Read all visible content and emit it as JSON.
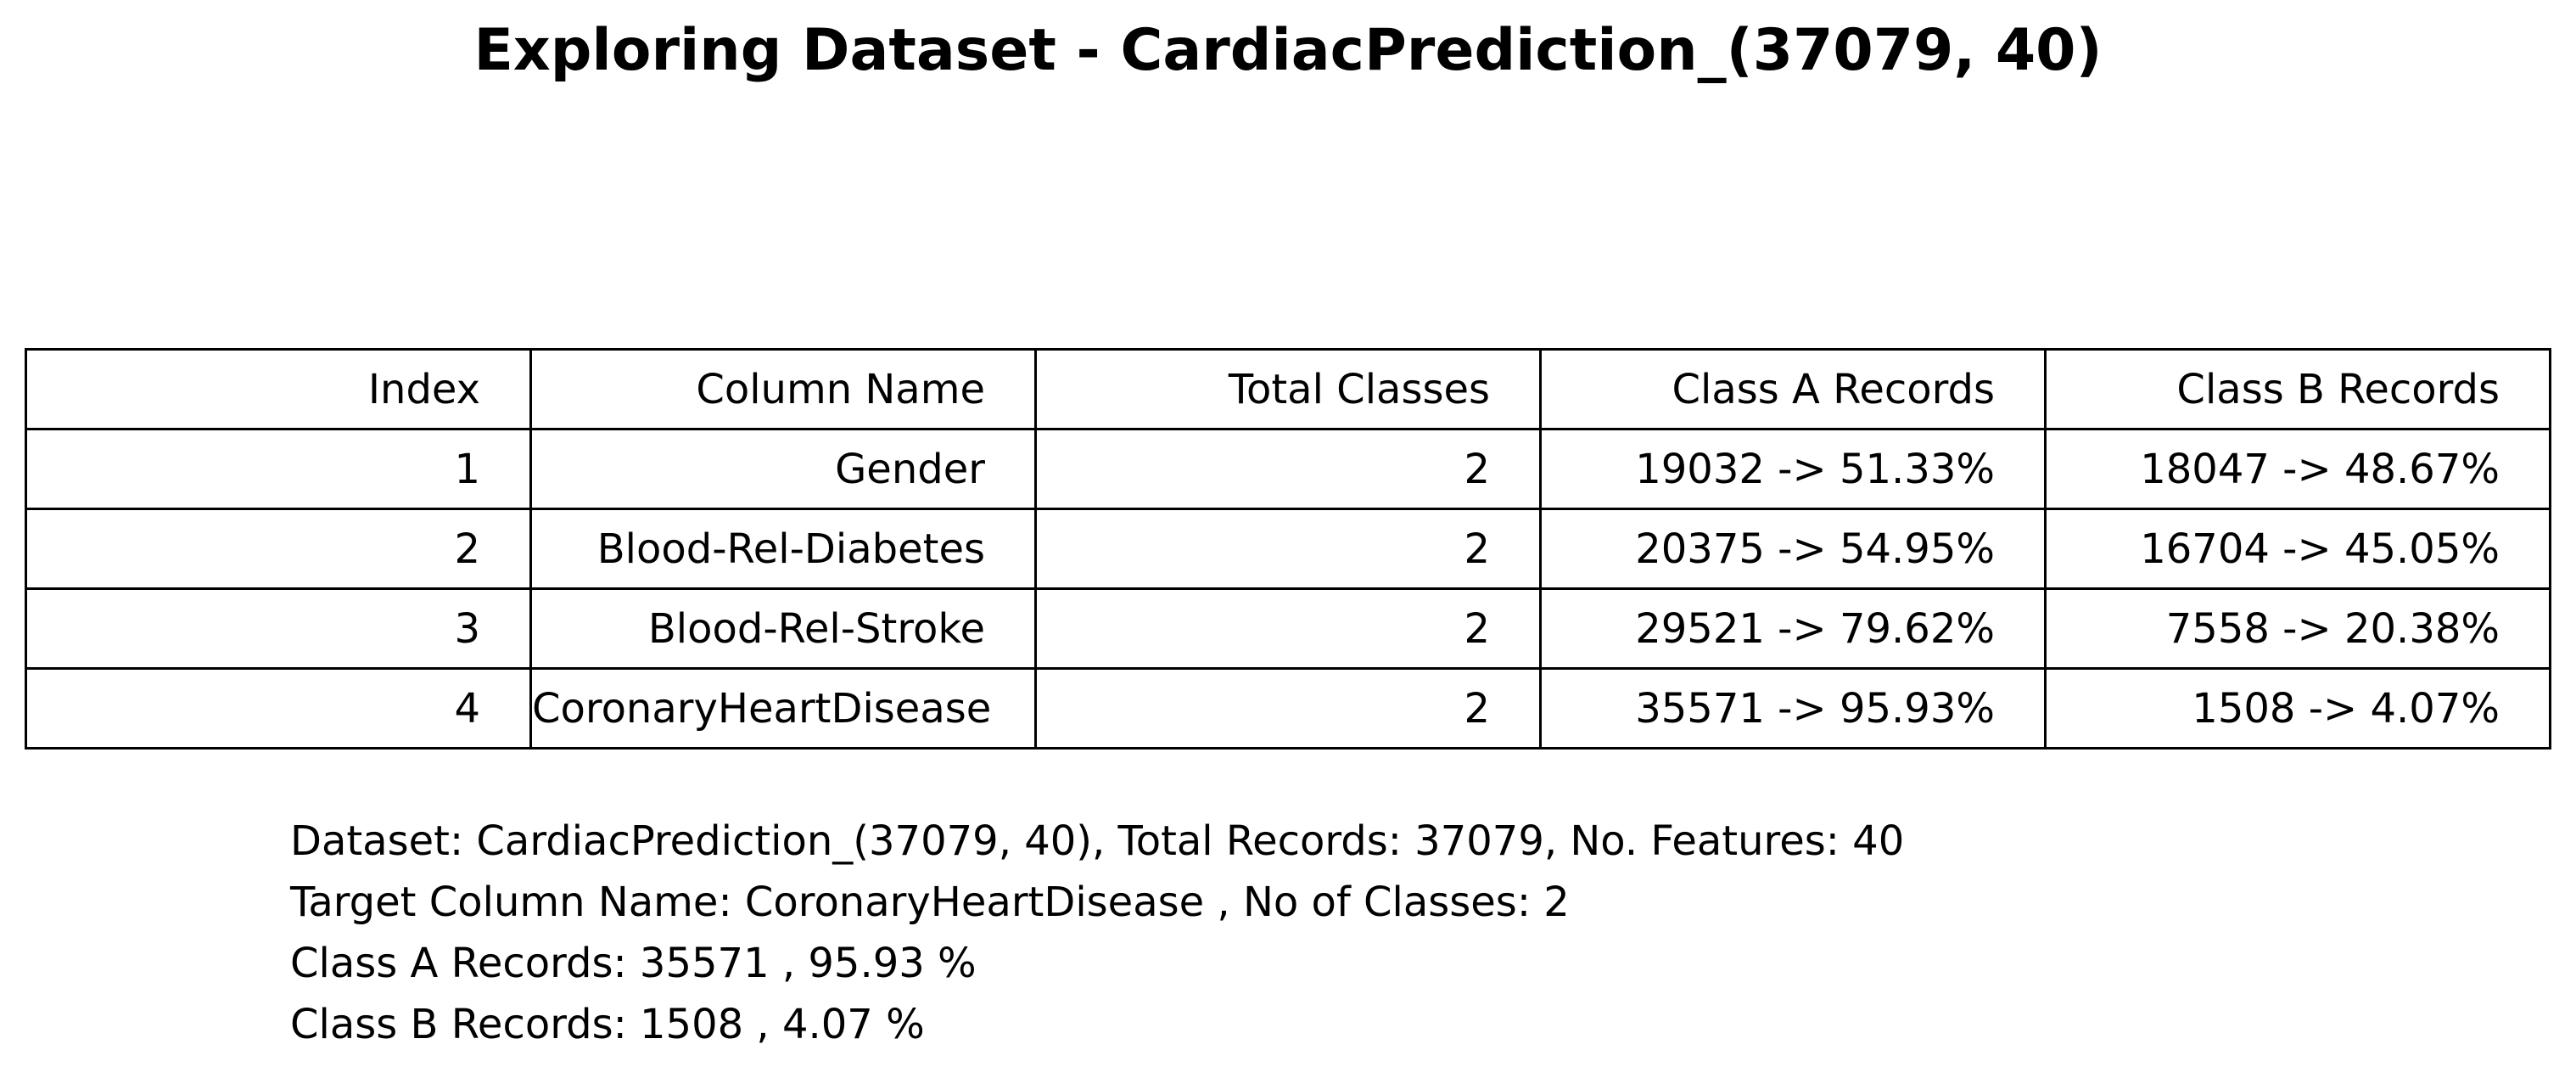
{
  "chart_data": {
    "type": "table",
    "title": "Exploring Dataset - CardiacPrediction_(37079, 40)",
    "columns": [
      "Index",
      "Column Name",
      "Total Classes",
      "Class A Records",
      "Class B Records"
    ],
    "rows": [
      [
        "1",
        "Gender",
        "2",
        "19032 -> 51.33%",
        "18047 -> 48.67%"
      ],
      [
        "2",
        "Blood-Rel-Diabetes",
        "2",
        "20375 -> 54.95%",
        "16704 -> 45.05%"
      ],
      [
        "3",
        "Blood-Rel-Stroke",
        "2",
        "29521 -> 79.62%",
        "7558 -> 20.38%"
      ],
      [
        "4",
        "CoronaryHeartDisease",
        "2",
        "35571 -> 95.93%",
        "1508 -> 4.07%"
      ]
    ],
    "summary": [
      "Dataset:  CardiacPrediction_(37079, 40), Total Records: 37079, No. Features: 40",
      "Target Column Name: CoronaryHeartDisease , No of Classes: 2",
      "Class A Records: 35571 , 95.93 %",
      "Class B Records: 1508 , 4.07 %"
    ]
  }
}
